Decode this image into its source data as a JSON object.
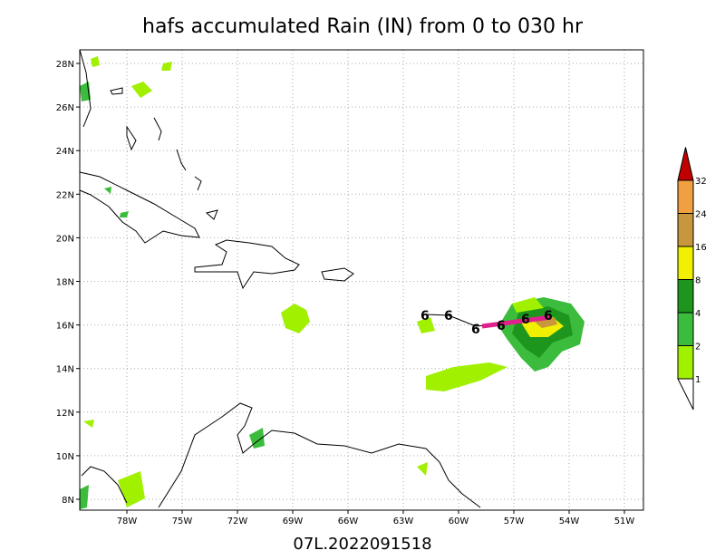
{
  "title": "hafs accumulated Rain (IN) from 0 to 030 hr",
  "footer": "07L.2022091518",
  "lon_ticks": [
    "78W",
    "75W",
    "72W",
    "69W",
    "66W",
    "63W",
    "60W",
    "57W",
    "54W",
    "51W"
  ],
  "lat_ticks": [
    "8N",
    "10N",
    "12N",
    "14N",
    "16N",
    "18N",
    "20N",
    "22N",
    "24N",
    "26N",
    "28N"
  ],
  "legend": {
    "labels": [
      "1",
      "2",
      "4",
      "8",
      "16",
      "24",
      "32"
    ],
    "colors": [
      "#a0f000",
      "#3cbc3c",
      "#1e961e",
      "#f0f000",
      "#c8963c",
      "#f0a040",
      "#c00000"
    ]
  }
}
